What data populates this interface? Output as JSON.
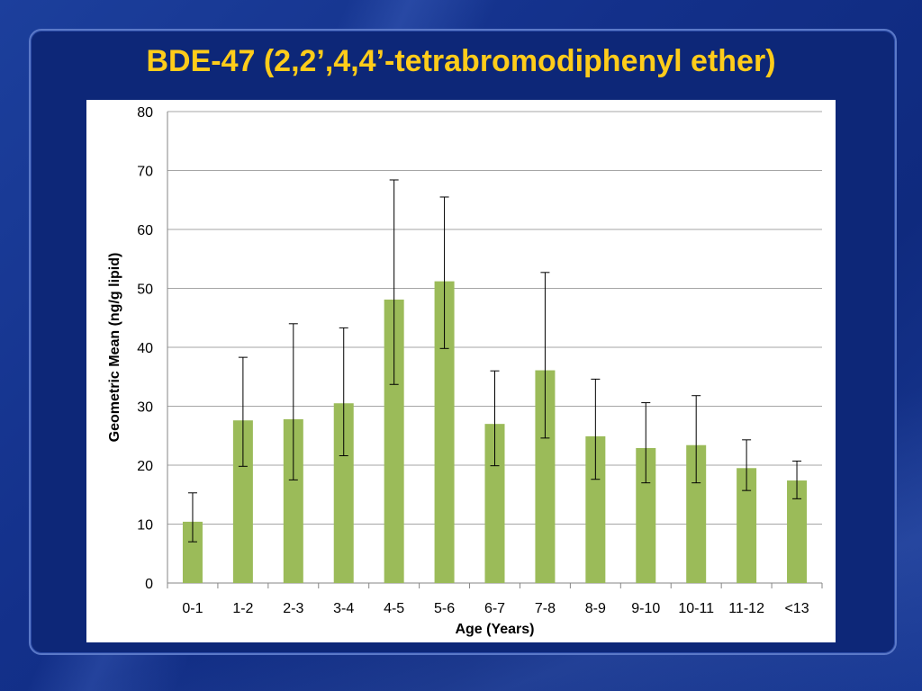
{
  "slide": {
    "title": "BDE-47 (2,2’,4,4’-tetrabromodiphenyl ether)",
    "colors": {
      "title": "#ffcc1a",
      "background": "#13308a",
      "bar": "#9bbb59",
      "gridline": "#a6a6a6"
    }
  },
  "chart_data": {
    "type": "bar",
    "title": "",
    "xlabel": "Age (Years)",
    "ylabel": "Geometric Mean (ng/g lipid)",
    "ylim": [
      0,
      80
    ],
    "yticks": [
      0,
      10,
      20,
      30,
      40,
      50,
      60,
      70,
      80
    ],
    "grid": true,
    "legend": "none",
    "categories": [
      "0-1",
      "1-2",
      "2-3",
      "3-4",
      "4-5",
      "5-6",
      "6-7",
      "7-8",
      "8-9",
      "9-10",
      "10-11",
      "11-12",
      "<13"
    ],
    "values": [
      10.4,
      27.6,
      27.8,
      30.5,
      48.1,
      51.2,
      27.0,
      36.1,
      24.9,
      22.9,
      23.4,
      19.5,
      17.4
    ],
    "error_low": [
      7.0,
      19.8,
      17.5,
      21.6,
      33.7,
      39.8,
      19.9,
      24.6,
      17.6,
      17.0,
      17.0,
      15.7,
      14.3
    ],
    "error_high": [
      15.3,
      38.3,
      44.0,
      43.3,
      68.4,
      65.5,
      36.0,
      52.7,
      34.6,
      30.6,
      31.8,
      24.3,
      20.7
    ]
  }
}
